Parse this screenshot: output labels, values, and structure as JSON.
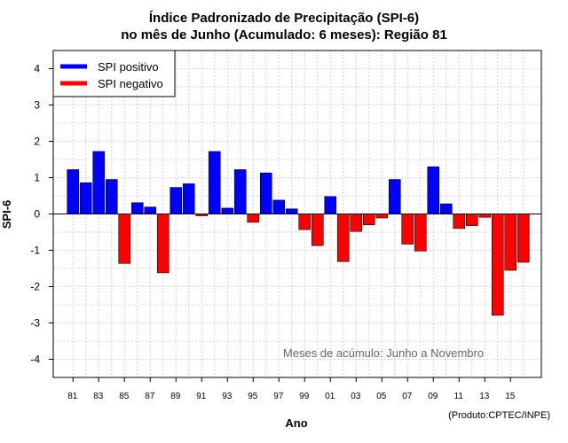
{
  "title_line1": "Índice Padronizado de Precipitação (SPI-6)",
  "title_line2": "no mês de Junho (Acumulado: 6 meses): Região 81",
  "product_label": "(Produto:CPTEC/INPE)",
  "chart_data": {
    "type": "bar",
    "xlabel": "Ano",
    "ylabel": "SPI-6",
    "ylim": [
      -4.5,
      4.5
    ],
    "yticks": [
      -4,
      -3,
      -2,
      -1,
      0,
      1,
      2,
      3,
      4
    ],
    "grid": true,
    "legend_position": "top-left",
    "legend": [
      {
        "label": "SPI positivo",
        "color": "#0000ff"
      },
      {
        "label": "SPI negativo",
        "color": "#ff0000"
      }
    ],
    "annotation": "Meses de acúmulo: Junho a Novembro",
    "xtick_labels": [
      "81",
      "83",
      "85",
      "87",
      "89",
      "91",
      "93",
      "95",
      "97",
      "99",
      "01",
      "03",
      "05",
      "07",
      "09",
      "11",
      "13",
      "15"
    ],
    "categories": [
      "1981",
      "1982",
      "1983",
      "1984",
      "1985",
      "1986",
      "1987",
      "1988",
      "1989",
      "1990",
      "1991",
      "1992",
      "1993",
      "1994",
      "1995",
      "1996",
      "1997",
      "1998",
      "1999",
      "2000",
      "2001",
      "2002",
      "2003",
      "2004",
      "2005",
      "2006",
      "2007",
      "2008",
      "2009",
      "2010",
      "2011",
      "2012",
      "2013",
      "2014",
      "2015",
      "2016"
    ],
    "values": [
      1.22,
      0.86,
      1.72,
      0.95,
      -1.36,
      0.31,
      0.19,
      -1.62,
      0.73,
      0.83,
      -0.05,
      1.72,
      0.16,
      1.22,
      -0.23,
      1.13,
      0.38,
      0.14,
      -0.43,
      -0.87,
      0.48,
      -1.31,
      -0.48,
      -0.3,
      -0.11,
      0.95,
      -0.83,
      -1.02,
      1.3,
      0.28,
      -0.4,
      -0.32,
      -0.09,
      -2.79,
      -1.55,
      -1.33
    ],
    "positive_color": "#0000ff",
    "negative_color": "#ff0000"
  }
}
